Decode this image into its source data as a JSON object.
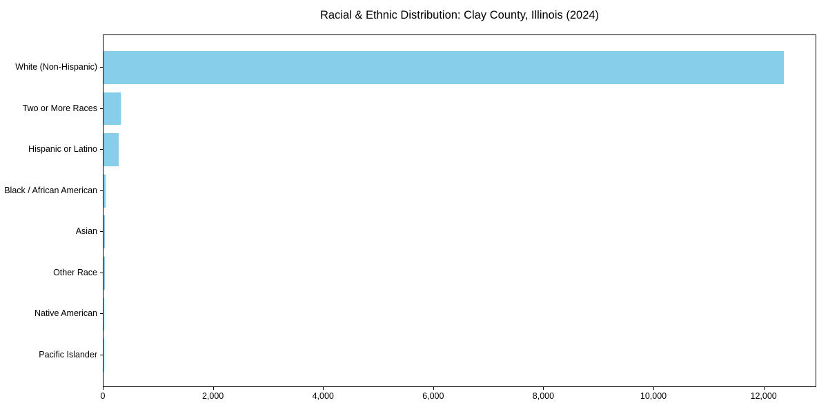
{
  "figure": {
    "background": "#ffffff",
    "text_color": "#000000"
  },
  "chart_data": {
    "type": "bar",
    "orientation": "horizontal",
    "title": "Racial & Ethnic Distribution: Clay County, Illinois (2024)",
    "xlabel": "",
    "ylabel": "",
    "categories": [
      "White (Non-Hispanic)",
      "Two or More Races",
      "Hispanic or Latino",
      "Black / African American",
      "Asian",
      "Other Race",
      "Native American",
      "Pacific Islander"
    ],
    "values": [
      12350,
      310,
      270,
      40,
      27,
      22,
      8,
      2
    ],
    "xticks": [
      0,
      2000,
      4000,
      6000,
      8000,
      10000,
      12000
    ],
    "xtick_labels": [
      "0",
      "2,000",
      "4,000",
      "6,000",
      "8,000",
      "10,000",
      "12,000"
    ],
    "xlim": [
      0,
      12957
    ],
    "bar_color": "#87CEEB",
    "grid": false,
    "legend": null
  }
}
